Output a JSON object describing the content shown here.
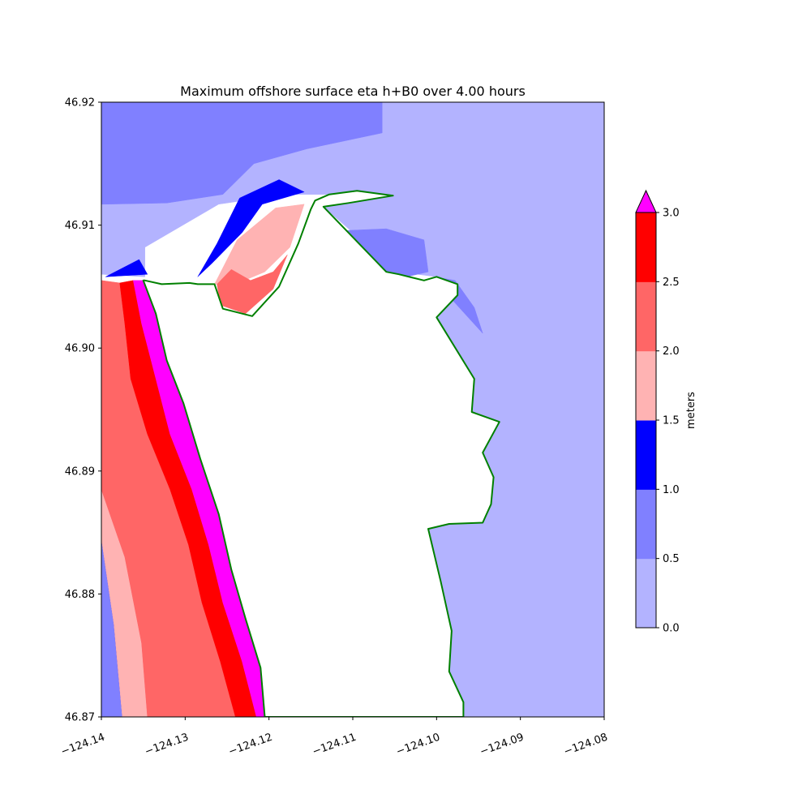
{
  "chart_data": {
    "type": "heatmap",
    "title": "Maximum offshore surface eta h+B0 over 4.00 hours",
    "xlabel": "",
    "ylabel": "",
    "xlim": [
      -124.14,
      -124.08
    ],
    "ylim": [
      46.87,
      46.92
    ],
    "x_ticks": [
      -124.14,
      -124.13,
      -124.12,
      -124.11,
      -124.1,
      -124.09,
      -124.08
    ],
    "x_tick_labels": [
      "−124.14",
      "−124.13",
      "−124.12",
      "−124.11",
      "−124.10",
      "−124.09",
      "−124.08"
    ],
    "y_ticks": [
      46.87,
      46.88,
      46.89,
      46.9,
      46.91,
      46.92
    ],
    "y_tick_labels": [
      "46.87",
      "46.88",
      "46.89",
      "46.90",
      "46.91",
      "46.92"
    ],
    "colorbar": {
      "label": "meters",
      "levels": [
        0.0,
        0.5,
        1.0,
        1.5,
        2.0,
        2.5,
        3.0
      ],
      "tick_labels": [
        "0.0",
        "0.5",
        "1.0",
        "1.5",
        "2.0",
        "2.5",
        "3.0"
      ],
      "colors": [
        "#b3b3ff",
        "#8080ff",
        "#0000ff",
        "#ffb3b3",
        "#ff6666",
        "#ff0000"
      ],
      "extend_max_color": "#ff00ff",
      "extend": "max"
    },
    "regions": [
      {
        "level": "0.0-0.5",
        "color": "#b3b3ff",
        "polygon": [
          [
            -124.14,
            46.92
          ],
          [
            -124.08,
            46.92
          ],
          [
            -124.08,
            46.87
          ],
          [
            -124.0968,
            46.87
          ],
          [
            -124.0968,
            46.8712
          ],
          [
            -124.0985,
            46.8737
          ],
          [
            -124.0982,
            46.877
          ],
          [
            -124.0995,
            46.881
          ],
          [
            -124.101,
            46.8853
          ],
          [
            -124.0985,
            46.8857
          ],
          [
            -124.0945,
            46.8858
          ],
          [
            -124.0935,
            46.8873
          ],
          [
            -124.0932,
            46.8895
          ],
          [
            -124.0945,
            46.8915
          ],
          [
            -124.0925,
            46.894
          ],
          [
            -124.0975,
            46.8934
          ],
          [
            -124.1,
            46.8922
          ],
          [
            -124.0958,
            46.8948
          ],
          [
            -124.0955,
            46.8975
          ],
          [
            -124.0982,
            46.8998
          ],
          [
            -124.1,
            46.9025
          ],
          [
            -124.0975,
            46.9052
          ],
          [
            -124.1,
            46.9058
          ],
          [
            -124.1045,
            46.9062
          ],
          [
            -124.1085,
            46.9085
          ],
          [
            -124.1135,
            46.9115
          ],
          [
            -124.1095,
            46.9128
          ],
          [
            -124.1052,
            46.9124
          ],
          [
            -124.1128,
            46.9125
          ],
          [
            -124.1178,
            46.9125
          ],
          [
            -124.121,
            46.9122
          ],
          [
            -124.126,
            46.9117
          ],
          [
            -124.1348,
            46.9082
          ],
          [
            -124.1348,
            46.9058
          ],
          [
            -124.14,
            46.906
          ]
        ]
      },
      {
        "level": "0.5-1.0",
        "color": "#8080ff",
        "polygon": [
          [
            -124.14,
            46.92
          ],
          [
            -124.1065,
            46.92
          ],
          [
            -124.1065,
            46.9175
          ],
          [
            -124.1155,
            46.9162
          ],
          [
            -124.1218,
            46.915
          ],
          [
            -124.1255,
            46.9125
          ],
          [
            -124.1322,
            46.9118
          ],
          [
            -124.1395,
            46.9117
          ],
          [
            -124.14,
            46.9117
          ]
        ]
      },
      {
        "level": "0.5-1.0",
        "color": "#8080ff",
        "polygon": [
          [
            -124.113,
            46.9095
          ],
          [
            -124.106,
            46.9097
          ],
          [
            -124.1015,
            46.9088
          ],
          [
            -124.101,
            46.9062
          ],
          [
            -124.1042,
            46.9057
          ],
          [
            -124.1082,
            46.9063
          ]
        ]
      },
      {
        "level": "0.5-1.0",
        "color": "#8080ff",
        "polygon": [
          [
            -124.0995,
            46.9057
          ],
          [
            -124.0985,
            46.9042
          ],
          [
            -124.0945,
            46.9012
          ],
          [
            -124.0955,
            46.9033
          ],
          [
            -124.0978,
            46.9055
          ]
        ]
      },
      {
        "level": "0.5-1.0",
        "color": "#8080ff",
        "polygon": [
          [
            -124.14,
            46.8925
          ],
          [
            -124.1378,
            46.8875
          ],
          [
            -124.1345,
            46.877
          ],
          [
            -124.1305,
            46.87
          ],
          [
            -124.14,
            46.87
          ]
        ]
      },
      {
        "level": "1.0-1.5",
        "color": "#0000ff",
        "polygon": [
          [
            -124.1285,
            46.9058
          ],
          [
            -124.1262,
            46.9085
          ],
          [
            -124.1235,
            46.9122
          ],
          [
            -124.1188,
            46.9137
          ],
          [
            -124.1158,
            46.9127
          ],
          [
            -124.1208,
            46.9117
          ],
          [
            -124.1232,
            46.9094
          ],
          [
            -124.1268,
            46.9069
          ]
        ]
      },
      {
        "level": "1.0-1.5",
        "color": "#0000ff",
        "polygon": [
          [
            -124.1395,
            46.9058
          ],
          [
            -124.1355,
            46.9072
          ],
          [
            -124.1345,
            46.906
          ]
        ]
      },
      {
        "level": "1.0-1.5",
        "color": "#0000ff",
        "polygon": [
          [
            -124.14,
            46.8925
          ],
          [
            -124.1378,
            46.8875
          ],
          [
            -124.1345,
            46.877
          ],
          [
            -124.1305,
            46.87
          ],
          [
            -124.1375,
            46.87
          ],
          [
            -124.1385,
            46.8775
          ],
          [
            -124.14,
            46.8845
          ]
        ]
      },
      {
        "level": "1.5-2.0",
        "color": "#ffb3b3",
        "polygon": [
          [
            -124.1265,
            46.9052
          ],
          [
            -124.1238,
            46.9088
          ],
          [
            -124.1192,
            46.9114
          ],
          [
            -124.1158,
            46.9117
          ],
          [
            -124.1175,
            46.9082
          ],
          [
            -124.1205,
            46.9062
          ],
          [
            -124.124,
            46.9052
          ]
        ]
      },
      {
        "level": "1.5-2.0",
        "color": "#ffb3b3",
        "polygon": [
          [
            -124.14,
            46.8845
          ],
          [
            -124.1385,
            46.8775
          ],
          [
            -124.1375,
            46.87
          ],
          [
            -124.1345,
            46.87
          ],
          [
            -124.1352,
            46.876
          ],
          [
            -124.1372,
            46.883
          ],
          [
            -124.14,
            46.8885
          ]
        ]
      },
      {
        "level": "2.0-2.5",
        "color": "#ff6666",
        "polygon": [
          [
            -124.1262,
            46.9052
          ],
          [
            -124.1258,
            46.9035
          ],
          [
            -124.1228,
            46.9028
          ],
          [
            -124.1195,
            46.9048
          ],
          [
            -124.1178,
            46.9076
          ],
          [
            -124.1195,
            46.9062
          ],
          [
            -124.1222,
            46.9055
          ],
          [
            -124.1245,
            46.9064
          ]
        ]
      },
      {
        "level": "2.0-2.5",
        "color": "#ff6666",
        "polygon": [
          [
            -124.14,
            46.9055
          ],
          [
            -124.1378,
            46.9053
          ],
          [
            -124.1372,
            46.902
          ],
          [
            -124.1365,
            46.8975
          ],
          [
            -124.1345,
            46.893
          ],
          [
            -124.1318,
            46.8885
          ],
          [
            -124.1296,
            46.884
          ],
          [
            -124.128,
            46.8793
          ],
          [
            -124.1258,
            46.8745
          ],
          [
            -124.124,
            46.87
          ],
          [
            -124.1345,
            46.87
          ],
          [
            -124.1352,
            46.876
          ],
          [
            -124.1372,
            46.883
          ],
          [
            -124.14,
            46.8885
          ]
        ]
      },
      {
        "level": "2.5-3.0",
        "color": "#ff0000",
        "polygon": [
          [
            -124.1378,
            46.9053
          ],
          [
            -124.1362,
            46.9055
          ],
          [
            -124.1352,
            46.902
          ],
          [
            -124.1335,
            46.8975
          ],
          [
            -124.1318,
            46.893
          ],
          [
            -124.1292,
            46.8885
          ],
          [
            -124.1272,
            46.884
          ],
          [
            -124.1255,
            46.8793
          ],
          [
            -124.1232,
            46.8745
          ],
          [
            -124.1215,
            46.87
          ],
          [
            -124.124,
            46.87
          ],
          [
            -124.1258,
            46.8745
          ],
          [
            -124.128,
            46.8793
          ],
          [
            -124.1296,
            46.884
          ],
          [
            -124.1318,
            46.8885
          ],
          [
            -124.1345,
            46.893
          ],
          [
            -124.1365,
            46.8975
          ],
          [
            -124.1372,
            46.902
          ]
        ]
      },
      {
        "level": ">3.0",
        "color": "#ff00ff",
        "polygon": [
          [
            -124.1362,
            46.9055
          ],
          [
            -124.135,
            46.9055
          ],
          [
            -124.1335,
            46.9028
          ],
          [
            -124.1322,
            46.899
          ],
          [
            -124.1302,
            46.8955
          ],
          [
            -124.1282,
            46.891
          ],
          [
            -124.126,
            46.8865
          ],
          [
            -124.1245,
            46.882
          ],
          [
            -124.1228,
            46.878
          ],
          [
            -124.121,
            46.874
          ],
          [
            -124.1205,
            46.87
          ],
          [
            -124.1215,
            46.87
          ],
          [
            -124.1232,
            46.8745
          ],
          [
            -124.1255,
            46.8793
          ],
          [
            -124.1272,
            46.884
          ],
          [
            -124.1292,
            46.8885
          ],
          [
            -124.1318,
            46.893
          ],
          [
            -124.1335,
            46.8975
          ],
          [
            -124.1352,
            46.902
          ]
        ]
      }
    ],
    "land": [
      {
        "polygon": [
          [
            -124.1348,
            46.9055
          ],
          [
            -124.1328,
            46.9052
          ],
          [
            -124.1295,
            46.9053
          ],
          [
            -124.1285,
            46.9052
          ],
          [
            -124.1265,
            46.9052
          ],
          [
            -124.1255,
            46.9032
          ],
          [
            -124.122,
            46.9026
          ],
          [
            -124.1188,
            46.905
          ],
          [
            -124.1165,
            46.9085
          ],
          [
            -124.115,
            46.9113
          ],
          [
            -124.1145,
            46.912
          ],
          [
            -124.1128,
            46.9125
          ],
          [
            -124.1095,
            46.9128
          ],
          [
            -124.1052,
            46.9124
          ],
          [
            -124.1105,
            46.9118
          ],
          [
            -124.1135,
            46.9115
          ],
          [
            -124.106,
            46.9062
          ],
          [
            -124.1045,
            46.906
          ],
          [
            -124.1015,
            46.9055
          ],
          [
            -124.1,
            46.9058
          ],
          [
            -124.0975,
            46.9052
          ],
          [
            -124.0975,
            46.9043
          ],
          [
            -124.1,
            46.9025
          ],
          [
            -124.0955,
            46.8975
          ],
          [
            -124.0958,
            46.8948
          ],
          [
            -124.0925,
            46.894
          ],
          [
            -124.0945,
            46.8915
          ],
          [
            -124.0932,
            46.8895
          ],
          [
            -124.0935,
            46.8873
          ],
          [
            -124.0945,
            46.8858
          ],
          [
            -124.0985,
            46.8857
          ],
          [
            -124.101,
            46.8853
          ],
          [
            -124.0995,
            46.881
          ],
          [
            -124.0982,
            46.877
          ],
          [
            -124.0985,
            46.8737
          ],
          [
            -124.0968,
            46.8712
          ],
          [
            -124.0968,
            46.87
          ],
          [
            -124.1205,
            46.87
          ],
          [
            -124.121,
            46.874
          ],
          [
            -124.1228,
            46.878
          ],
          [
            -124.1245,
            46.882
          ],
          [
            -124.126,
            46.8865
          ],
          [
            -124.1282,
            46.891
          ],
          [
            -124.1302,
            46.8955
          ],
          [
            -124.1322,
            46.899
          ],
          [
            -124.1335,
            46.9028
          ],
          [
            -124.135,
            46.9055
          ]
        ]
      }
    ],
    "coastline_color": "#008000",
    "grid": false,
    "legend": "none"
  }
}
